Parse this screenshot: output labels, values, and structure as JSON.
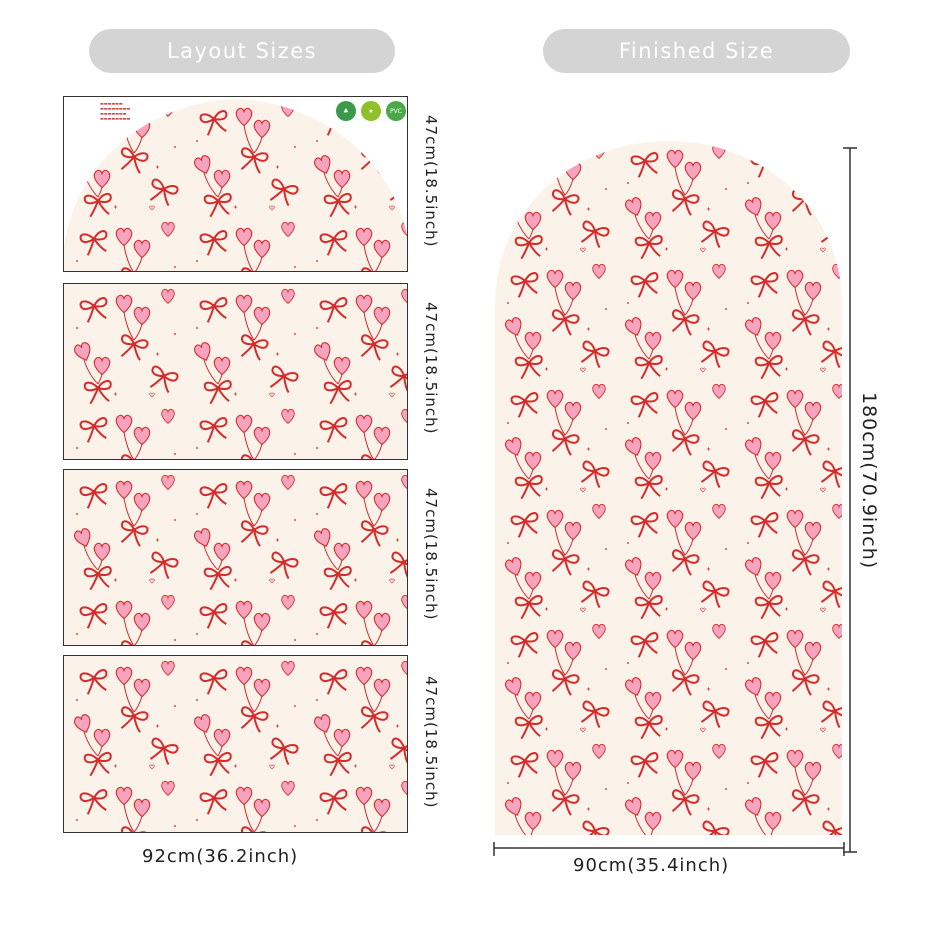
{
  "headers": {
    "layout": "Layout Sizes",
    "finished": "Finished Size"
  },
  "layout_panels": [
    {
      "height_label": "47cm(18.5inch)"
    },
    {
      "height_label": "47cm(18.5inch)"
    },
    {
      "height_label": "47cm(18.5inch)"
    },
    {
      "height_label": "47cm(18.5inch)"
    }
  ],
  "layout_width_label": "92cm(36.2inch)",
  "finished": {
    "height_label": "180cm(70.9inch)",
    "width_label": "90cm(35.4inch)"
  },
  "badges": [
    "PVC"
  ],
  "colors": {
    "background": "#fbf3ea",
    "ribbon": "#d62b2b",
    "heart_fill": "#f6a4bd",
    "heart_stroke": "#d62b2b",
    "pill": "#d4d4d4"
  }
}
